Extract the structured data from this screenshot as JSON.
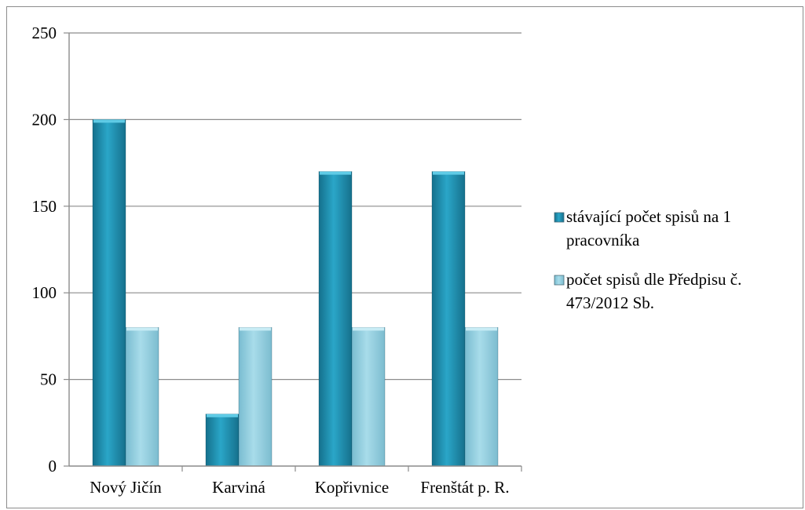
{
  "chart_data": {
    "type": "bar",
    "title": "",
    "xlabel": "",
    "ylabel": "",
    "categories": [
      "Nový Jičín",
      "Karviná",
      "Kopřivnice",
      "Frenštát p. R."
    ],
    "series": [
      {
        "name": "stávající počet spisů na 1 pracovníka",
        "values": [
          200,
          30,
          170,
          170
        ],
        "color": "#1e8fb0"
      },
      {
        "name": "počet spisů dle Předpisu č. 473/2012 Sb.",
        "values": [
          80,
          80,
          80,
          80
        ],
        "color": "#8ccde0"
      }
    ],
    "ylim": [
      0,
      250
    ],
    "yticks": [
      0,
      50,
      100,
      150,
      200,
      250
    ],
    "grid": true,
    "legend_position": "right",
    "legend_lines": [
      [
        "stávající počet spisů na 1",
        "pracovníka"
      ],
      [
        "počet spisů dle Předpisu č.",
        "473/2012 Sb."
      ]
    ]
  }
}
